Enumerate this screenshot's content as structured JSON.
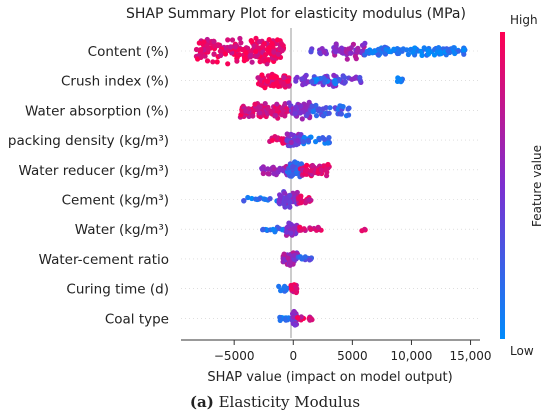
{
  "chart_data": {
    "type": "scatter",
    "subtype": "shap-beeswarm",
    "title": "SHAP Summary Plot for elasticity modulus (MPa)",
    "xlabel": "SHAP value (impact on model output)",
    "xlim": [
      -9500,
      15800
    ],
    "x_ticks": [
      -5000,
      0,
      5000,
      10000,
      15000
    ],
    "x_tick_labels": [
      "−5000",
      "0",
      "5000",
      "10,000",
      "15,000"
    ],
    "colorbar": {
      "label": "Feature value",
      "high": "High",
      "low": "Low",
      "high_color": "#ff0052",
      "low_color": "#008bfb"
    },
    "features": [
      {
        "name": "Content (%)",
        "clusters": [
          {
            "x": [
              -8200,
              -800
            ],
            "v": 0.9,
            "w": 14,
            "n": 210
          },
          {
            "x": [
              3400,
              6200
            ],
            "v": 0.6,
            "w": 9,
            "n": 40
          },
          {
            "x": [
              1500,
              5000
            ],
            "v": 0.45,
            "w": 4,
            "n": 18
          },
          {
            "x": [
              6000,
              14600
            ],
            "v": 0.1,
            "w": 5,
            "n": 110
          }
        ]
      },
      {
        "name": "Crush index (%)",
        "clusters": [
          {
            "x": [
              -3000,
              -300
            ],
            "v": 0.9,
            "w": 8,
            "n": 90
          },
          {
            "x": [
              100,
              5800
            ],
            "v": 0.45,
            "w": 6,
            "n": 55
          },
          {
            "x": [
              1500,
              4000
            ],
            "v": 0.15,
            "w": 4,
            "n": 15
          },
          {
            "x": [
              8800,
              9300
            ],
            "v": 0.1,
            "w": 4,
            "n": 6
          }
        ]
      },
      {
        "name": "Water absorption (%)",
        "clusters": [
          {
            "x": [
              -4500,
              -400
            ],
            "v": 0.85,
            "w": 9,
            "n": 100
          },
          {
            "x": [
              -400,
              1500
            ],
            "v": 0.5,
            "w": 9,
            "n": 50
          },
          {
            "x": [
              1500,
              4800
            ],
            "v": 0.25,
            "w": 6,
            "n": 40
          }
        ]
      },
      {
        "name": "packing density (kg/m³)",
        "clusters": [
          {
            "x": [
              -2000,
              -300
            ],
            "v": 0.85,
            "w": 4,
            "n": 20
          },
          {
            "x": [
              -600,
              700
            ],
            "v": 0.5,
            "w": 8,
            "n": 45
          },
          {
            "x": [
              700,
              3200
            ],
            "v": 0.15,
            "w": 4,
            "n": 20
          }
        ]
      },
      {
        "name": "Water reducer (kg/m³)",
        "clusters": [
          {
            "x": [
              -2700,
              -300
            ],
            "v": 0.6,
            "w": 6,
            "n": 40
          },
          {
            "x": [
              -500,
              800
            ],
            "v": 0.25,
            "w": 9,
            "n": 50
          },
          {
            "x": [
              600,
              3100
            ],
            "v": 0.85,
            "w": 7,
            "n": 55
          }
        ]
      },
      {
        "name": "Cement (kg/m³)",
        "clusters": [
          {
            "x": [
              -4200,
              -1200
            ],
            "v": 0.15,
            "w": 3,
            "n": 14
          },
          {
            "x": [
              -1200,
              400
            ],
            "v": 0.5,
            "w": 9,
            "n": 50
          },
          {
            "x": [
              400,
              1600
            ],
            "v": 0.85,
            "w": 4,
            "n": 20
          }
        ]
      },
      {
        "name": "Water (kg/m³)",
        "clusters": [
          {
            "x": [
              -2700,
              -600
            ],
            "v": 0.15,
            "w": 3,
            "n": 16
          },
          {
            "x": [
              -600,
              400
            ],
            "v": 0.55,
            "w": 8,
            "n": 45
          },
          {
            "x": [
              400,
              2500
            ],
            "v": 0.85,
            "w": 3,
            "n": 14
          },
          {
            "x": [
              5800,
              6100
            ],
            "v": 0.95,
            "w": 2,
            "n": 3
          }
        ]
      },
      {
        "name": "Water-cement ratio",
        "clusters": [
          {
            "x": [
              -900,
              400
            ],
            "v": 0.6,
            "w": 7,
            "n": 40
          },
          {
            "x": [
              400,
              2200
            ],
            "v": 0.25,
            "w": 3,
            "n": 12
          }
        ]
      },
      {
        "name": "Curing time (d)",
        "clusters": [
          {
            "x": [
              -1300,
              -300
            ],
            "v": 0.1,
            "w": 3,
            "n": 10
          },
          {
            "x": [
              -200,
              300
            ],
            "v": 0.9,
            "w": 6,
            "n": 25
          }
        ]
      },
      {
        "name": "Coal type",
        "clusters": [
          {
            "x": [
              -1200,
              -100
            ],
            "v": 0.1,
            "w": 3,
            "n": 14
          },
          {
            "x": [
              -100,
              300
            ],
            "v": 0.5,
            "w": 8,
            "n": 30
          },
          {
            "x": [
              300,
              1600
            ],
            "v": 0.85,
            "w": 3,
            "n": 12
          }
        ]
      }
    ]
  },
  "caption": {
    "label": "(a)",
    "text": " Elasticity Modulus"
  }
}
